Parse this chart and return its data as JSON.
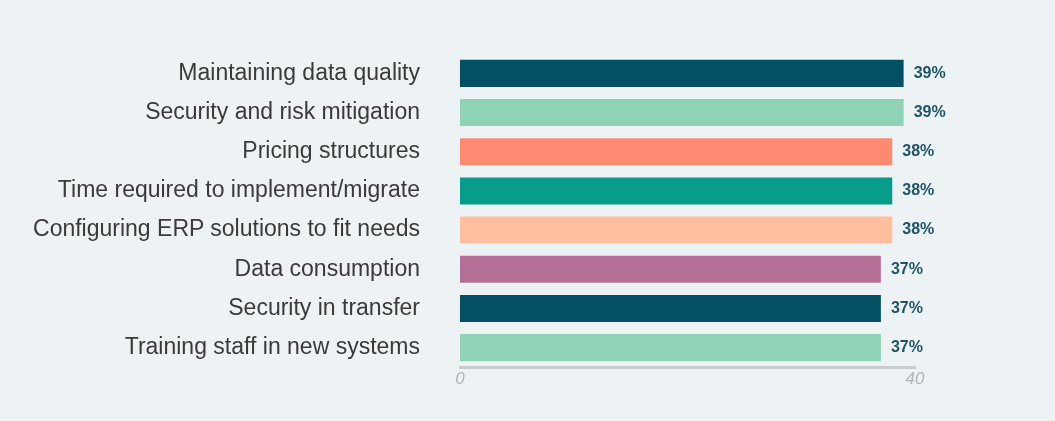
{
  "chart_data": {
    "type": "bar",
    "orientation": "horizontal",
    "categories": [
      "Maintaining data quality",
      "Security and risk mitigation",
      "Pricing structures",
      "Time required to implement/migrate",
      "Configuring ERP solutions to fit needs",
      "Data consumption",
      "Security in transfer",
      "Training staff in new systems"
    ],
    "values": [
      39,
      39,
      38,
      38,
      38,
      37,
      37,
      37
    ],
    "colors": [
      "#034f63",
      "#8fd3b6",
      "#ff8a72",
      "#069e8a",
      "#ffbf9f",
      "#b56f96",
      "#034f63",
      "#8fd3b6"
    ],
    "value_labels": [
      "39%",
      "39%",
      "38%",
      "38%",
      "38%",
      "37%",
      "37%",
      "37%"
    ],
    "xlim": [
      0,
      40
    ],
    "xticks": [
      0,
      40
    ],
    "grid": false,
    "legend": false
  }
}
